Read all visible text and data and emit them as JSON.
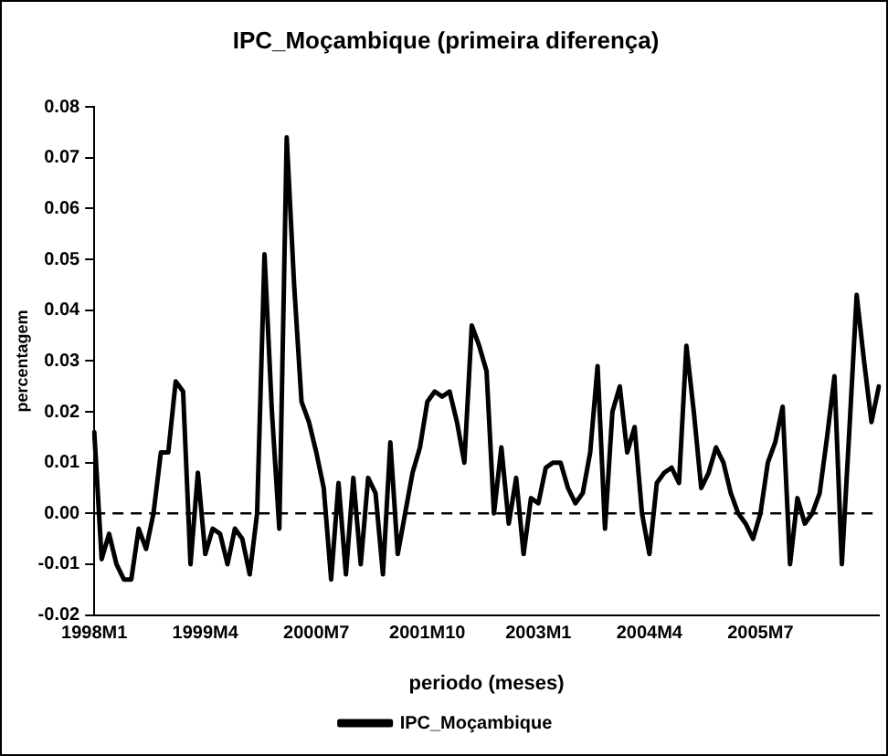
{
  "chart_data": {
    "type": "line",
    "title": "IPC_Moçambique (primeira diferença)",
    "xlabel": "periodo (meses)",
    "ylabel": "percentagem",
    "categories": [
      "1998M1",
      null,
      null,
      null,
      null,
      null,
      null,
      null,
      null,
      null,
      null,
      null,
      null,
      null,
      null,
      "1999M4",
      null,
      null,
      null,
      null,
      null,
      null,
      null,
      null,
      null,
      null,
      null,
      null,
      null,
      null,
      "2000M7",
      null,
      null,
      null,
      null,
      null,
      null,
      null,
      null,
      null,
      null,
      null,
      null,
      null,
      null,
      "2001M10",
      null,
      null,
      null,
      null,
      null,
      null,
      null,
      null,
      null,
      null,
      null,
      null,
      null,
      null,
      "2003M1",
      null,
      null,
      null,
      null,
      null,
      null,
      null,
      null,
      null,
      null,
      null,
      null,
      null,
      null,
      "2004M4",
      null,
      null,
      null,
      null,
      null,
      null,
      null,
      null,
      null,
      null,
      null,
      null,
      null,
      null,
      "2005M7",
      null,
      null,
      null,
      null,
      null,
      null,
      null,
      null,
      null,
      null,
      null,
      null,
      null,
      null,
      null,
      null
    ],
    "series": [
      {
        "name": "IPC_Moçambique",
        "color": "#000000",
        "values": [
          0.016,
          -0.009,
          -0.004,
          -0.01,
          -0.013,
          -0.013,
          -0.003,
          -0.007,
          0.0,
          0.012,
          0.012,
          0.026,
          0.024,
          -0.01,
          0.008,
          -0.008,
          -0.003,
          -0.004,
          -0.01,
          -0.003,
          -0.005,
          -0.012,
          0.0,
          0.051,
          0.02,
          -0.003,
          0.074,
          0.045,
          0.022,
          0.018,
          0.012,
          0.005,
          -0.013,
          0.006,
          -0.012,
          0.007,
          -0.01,
          0.007,
          0.004,
          -0.012,
          0.014,
          -0.008,
          0.0,
          0.008,
          0.013,
          0.022,
          0.024,
          0.023,
          0.024,
          0.018,
          0.01,
          0.037,
          0.033,
          0.028,
          0.0,
          0.013,
          -0.002,
          0.007,
          -0.008,
          0.003,
          0.002,
          0.009,
          0.01,
          0.01,
          0.005,
          0.002,
          0.004,
          0.012,
          0.029,
          -0.003,
          0.02,
          0.025,
          0.012,
          0.017,
          0.0,
          -0.008,
          0.006,
          0.008,
          0.009,
          0.006,
          0.033,
          0.02,
          0.005,
          0.008,
          0.013,
          0.01,
          0.004,
          0.0,
          -0.002,
          -0.005,
          0.0,
          0.01,
          0.014,
          0.021,
          -0.01,
          0.003,
          -0.002,
          0.0,
          0.004,
          0.015,
          0.027,
          -0.01,
          0.016,
          0.043,
          0.03,
          0.018,
          0.025
        ]
      }
    ],
    "ylim": [
      -0.02,
      0.08
    ],
    "yticks": [
      -0.02,
      -0.01,
      {
        "value": 0,
        "label": "0.00"
      },
      0.01,
      0.02,
      0.03,
      0.04,
      0.05,
      0.06,
      0.07,
      0.08
    ],
    "ref_lines": [
      {
        "axis": "y",
        "value": 0,
        "line_style": "dashed",
        "color": "#000000"
      }
    ],
    "grid": false,
    "legend": "bottom",
    "marker": "none",
    "line_style": "solid"
  }
}
